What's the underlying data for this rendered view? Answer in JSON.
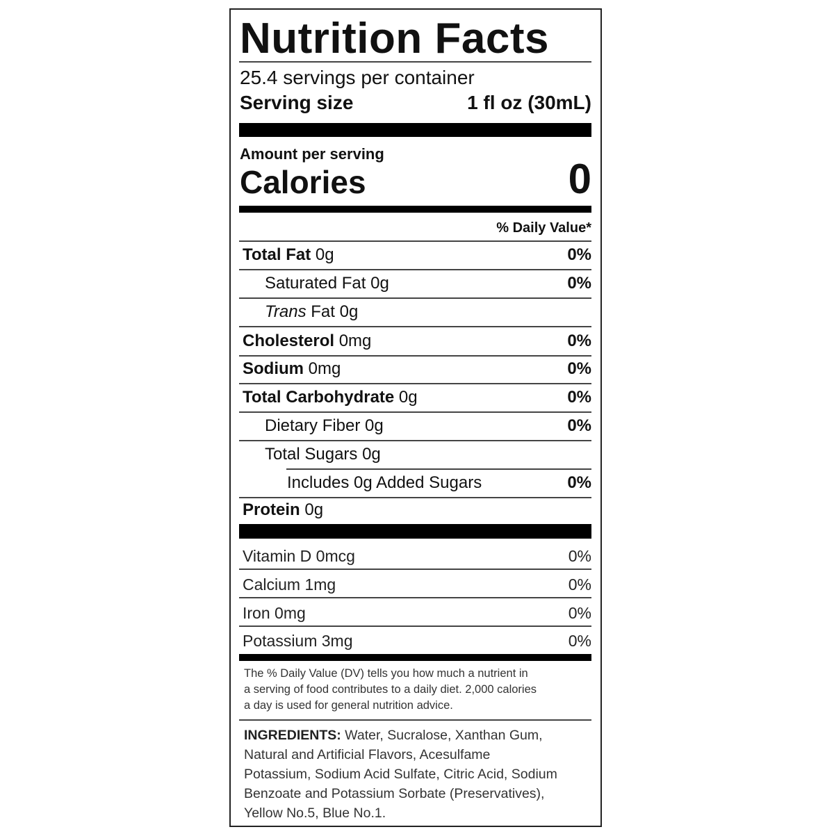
{
  "title": "Nutrition Facts",
  "servings_per_container": "25.4 servings per container",
  "serving_size": {
    "label": "Serving size",
    "value": "1 fl oz (30mL)"
  },
  "amount_per_serving": "Amount per serving",
  "calories": {
    "label": "Calories",
    "value": "0"
  },
  "daily_value_header": "% Daily Value*",
  "nutrients": [
    {
      "name": "Total Fat",
      "amount": "0g",
      "dv": "0%"
    },
    {
      "name": "Saturated Fat",
      "amount": "0g",
      "dv": "0%"
    },
    {
      "name": "Trans",
      "name_suffix": "Fat",
      "amount": "0g",
      "dv": ""
    },
    {
      "name": "Cholesterol",
      "amount": "0mg",
      "dv": "0%"
    },
    {
      "name": "Sodium",
      "amount": "0mg",
      "dv": "0%"
    },
    {
      "name": "Total Carbohydrate",
      "amount": "0g",
      "dv": "0%"
    },
    {
      "name": "Dietary Fiber",
      "amount": "0g",
      "dv": "0%"
    },
    {
      "name": "Total Sugars",
      "amount": "0g",
      "dv": ""
    },
    {
      "name": "Includes 0g Added Sugars",
      "amount": "",
      "dv": "0%"
    },
    {
      "name": "Protein",
      "amount": "0g",
      "dv": ""
    }
  ],
  "vitamins": [
    {
      "label": "Vitamin D 0mcg",
      "dv": "0%"
    },
    {
      "label": "Calcium 1mg",
      "dv": "0%"
    },
    {
      "label": "Iron 0mg",
      "dv": "0%"
    },
    {
      "label": "Potassium 3mg",
      "dv": "0%"
    }
  ],
  "footnote": [
    "The % Daily Value (DV) tells you how much a nutrient in",
    "a serving of food contributes to a daily diet. 2,000 calories",
    "a day is used for general nutrition advice."
  ],
  "ingredients": {
    "label": "INGREDIENTS:",
    "lines": [
      " Water, Sucralose, Xanthan Gum,",
      "Natural and Artificial Flavors, Acesulfame",
      "Potassium, Sodium Acid Sulfate, Citric Acid, Sodium",
      "Benzoate and Potassium Sorbate (Preservatives),",
      "Yellow No.5, Blue No.1."
    ]
  }
}
